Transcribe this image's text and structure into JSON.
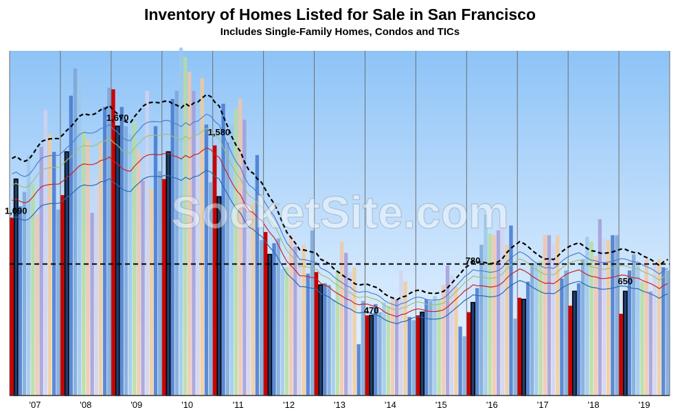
{
  "header": {
    "title": "Inventory of Homes Listed for Sale in San Francisco",
    "subtitle": "Includes Single-Family Homes, Condos and TICs"
  },
  "watermark": "SocketSite.com",
  "chart_data": {
    "type": "bar",
    "title": "Inventory of Homes Listed for Sale in San Francisco",
    "subtitle": "Includes Single-Family Homes, Condos and TICs",
    "categories": [
      "'07",
      "'08",
      "'09",
      "'10",
      "'11",
      "'12",
      "'13",
      "'14",
      "'15",
      "'16",
      "'17",
      "'18",
      "'19"
    ],
    "ylim": [
      0,
      2150
    ],
    "grid": false,
    "reference_line": 820,
    "colors": {
      "year_mark": "#cc0000",
      "highlight": "#1f3f6f",
      "palette": [
        "#4477cc",
        "#7aa6d8",
        "#9ec8ea",
        "#b6dc9e",
        "#f4c4a8",
        "#a49cd6",
        "#d2d2ec",
        "#f2ca98"
      ],
      "trend_dashed": "#000000",
      "trend_lines": [
        "#4d7fc8",
        "#9fc07a",
        "#cc2020",
        "#2a6aaa"
      ]
    },
    "monthly_values": [
      [
        1110,
        1350,
        1180,
        1270,
        1500,
        1320,
        1130,
        1550,
        1780,
        1630,
        1520,
        1160
      ],
      [
        1250,
        1520,
        1870,
        2040,
        2000,
        1650,
        1600,
        1140,
        1350,
        1580,
        1800,
        1920
      ],
      [
        1910,
        1680,
        1800,
        1680,
        1630,
        1710,
        1530,
        1340,
        1900,
        1290,
        1680,
        1400
      ],
      [
        1350,
        1520,
        1850,
        1900,
        2170,
        2110,
        2020,
        1900,
        1630,
        1980,
        1690,
        1330
      ],
      [
        1560,
        1240,
        1820,
        1580,
        1690,
        1790,
        1850,
        1720,
        1270,
        1200,
        1500,
        970
      ],
      [
        1020,
        880,
        950,
        980,
        790,
        800,
        1000,
        930,
        850,
        940,
        760,
        1030
      ],
      [
        770,
        690,
        700,
        690,
        600,
        780,
        960,
        890,
        770,
        800,
        320,
        590
      ],
      [
        500,
        500,
        570,
        520,
        580,
        560,
        600,
        600,
        780,
        710,
        490,
        470
      ],
      [
        500,
        520,
        600,
        590,
        620,
        600,
        690,
        810,
        750,
        680,
        430,
        370
      ],
      [
        520,
        580,
        670,
        940,
        1130,
        1010,
        1000,
        1030,
        1090,
        940,
        1060,
        480
      ],
      [
        610,
        600,
        710,
        820,
        830,
        840,
        1000,
        1000,
        950,
        1000,
        730,
        780
      ],
      [
        560,
        650,
        700,
        850,
        990,
        960,
        870,
        1100,
        980,
        970,
        1000,
        1000
      ],
      [
        510,
        650,
        780,
        880,
        810,
        710,
        850,
        650,
        820,
        850,
        800,
        780
      ]
    ],
    "annotations": [
      {
        "label": "1,090",
        "value": 1090,
        "category": "'07"
      },
      {
        "label": "1,670",
        "value": 1670,
        "category": "'09"
      },
      {
        "label": "1,580",
        "value": 1580,
        "category": "'11"
      },
      {
        "label": "470",
        "value": 470,
        "category": "'14"
      },
      {
        "label": "780",
        "value": 780,
        "category": "'16"
      },
      {
        "label": "650",
        "value": 650,
        "category": "'19"
      }
    ]
  }
}
